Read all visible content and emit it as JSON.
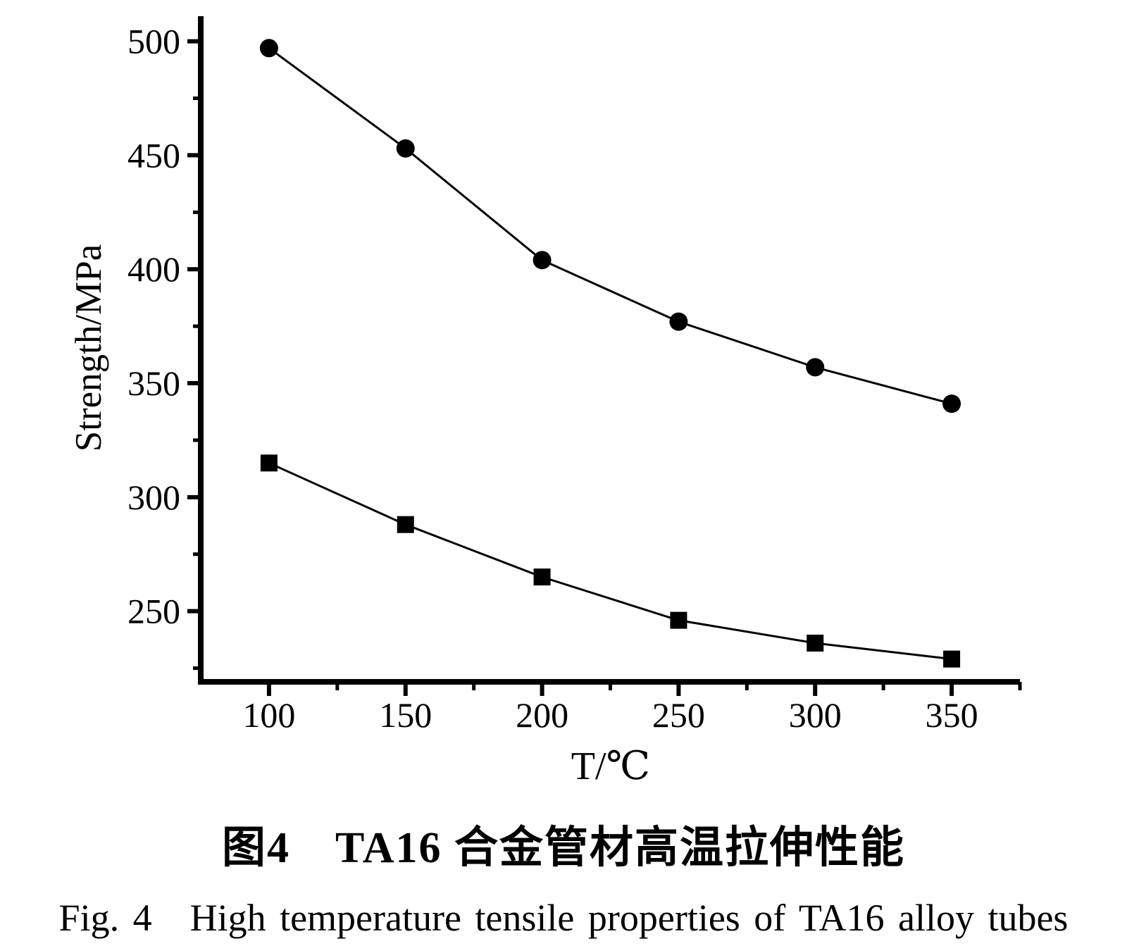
{
  "figure": {
    "caption_zh": "图4　TA16 合金管材高温拉伸性能",
    "caption_en": "Fig. 4　High temperature tensile properties of TA16 alloy tubes"
  },
  "chart_data": {
    "type": "line",
    "x": [
      100,
      150,
      200,
      250,
      300,
      350
    ],
    "series": [
      {
        "name": "upper-strength-curve",
        "marker": "circle",
        "values": [
          497,
          453,
          404,
          377,
          357,
          341
        ]
      },
      {
        "name": "lower-strength-curve",
        "marker": "square",
        "values": [
          315,
          288,
          265,
          246,
          236,
          229
        ]
      }
    ],
    "xlabel": "T/℃",
    "ylabel": "Strength/MPa",
    "xlim": [
      75,
      375
    ],
    "ylim": [
      219,
      511
    ],
    "x_major_ticks": [
      100,
      150,
      200,
      250,
      300,
      350
    ],
    "x_minor_ticks": [
      125,
      175,
      225,
      275,
      325,
      375
    ],
    "y_major_ticks": [
      250,
      300,
      350,
      400,
      450,
      500
    ],
    "y_minor_ticks": [
      225,
      275,
      325,
      375,
      425,
      475
    ],
    "grid": false,
    "legend": "none",
    "line_color": "#000000",
    "marker_color": "#000000",
    "axis_color": "#000000"
  }
}
